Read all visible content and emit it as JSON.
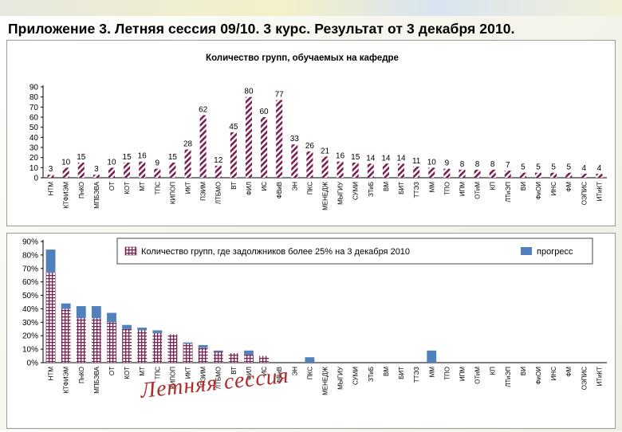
{
  "page": {
    "title": "Приложение 3. Летняя сессия 09/10.   3 курс.  Результат от 3 декабря 2010.",
    "watermark": "Летняя сессия"
  },
  "colors": {
    "hatch_bar": "#7a2050",
    "grid_bar": "#7a2050",
    "progress": "#4f81bd"
  },
  "chart_data": [
    {
      "type": "bar",
      "title": "Количество групп, обучаемых на кафедре",
      "ylim": [
        0,
        90
      ],
      "yticks": [
        0,
        10,
        20,
        30,
        40,
        50,
        60,
        70,
        80,
        90
      ],
      "categories": [
        "НТМ",
        "КТФИЭМ",
        "ПнКО",
        "МПБЭВА",
        "ОТ",
        "КОТ",
        "МТ",
        "ТПС",
        "КИПОП",
        "ИКТ",
        "ПЭИМ",
        "ЛТБМО",
        "ВТ",
        "ФИЛ",
        "ИС",
        "ФВиВ",
        "ЭН",
        "ПКС",
        "МЕНЕДЖ",
        "МЫГИУ",
        "СУМИ",
        "ЗТиБ",
        "ВМ",
        "БИТ",
        "ТТЭЗ",
        "ММ",
        "ТПО",
        "ИПМ",
        "ОТиМ",
        "КП",
        "ЛТиЭП",
        "ВИ",
        "ФиОИ",
        "ИНС",
        "ФМ",
        "ОЭПИС",
        "ИТиКТ"
      ],
      "values": [
        3,
        10,
        15,
        3,
        10,
        15,
        16,
        9,
        15,
        28,
        62,
        12,
        45,
        80,
        60,
        77,
        33,
        26,
        21,
        16,
        15,
        14,
        14,
        14,
        11,
        10,
        9,
        8,
        8,
        8,
        7,
        5,
        5,
        5,
        5,
        4,
        4
      ]
    },
    {
      "type": "bar",
      "stacked": true,
      "ylim": [
        0,
        90
      ],
      "yticks": [
        "0%",
        "10%",
        "20%",
        "30%",
        "40%",
        "50%",
        "60%",
        "70%",
        "80%",
        "90%"
      ],
      "legend_position": "top",
      "categories": [
        "НТМ",
        "КТФИЭМ",
        "ПнКО",
        "МПБЭВА",
        "ОТ",
        "КОТ",
        "МТ",
        "ТПС",
        "КИПОП",
        "ИКТ",
        "ПЭИМ",
        "ЛТБМО",
        "ВТ",
        "ФИЛ",
        "ИС",
        "ФВиВ",
        "ЭН",
        "ПКС",
        "МЕНЕДЖ",
        "МЫГИУ",
        "СУМИ",
        "ЗТиБ",
        "ВМ",
        "БИТ",
        "ТТЭЗ",
        "ММ",
        "ТПО",
        "ИПМ",
        "ОТиМ",
        "КП",
        "ЛТиЭП",
        "ВИ",
        "ФиОИ",
        "ИНС",
        "ФМ",
        "ОЭПИС",
        "ИТиКТ"
      ],
      "series": [
        {
          "name": "Количество групп, где задолжников более  25% на 3 декабря 2010",
          "values": [
            67,
            40,
            33,
            33,
            30,
            25,
            24,
            22,
            21,
            14,
            11,
            8,
            7,
            6,
            5,
            0,
            0,
            0,
            0,
            0,
            0,
            0,
            0,
            0,
            0,
            0,
            0,
            0,
            0,
            0,
            0,
            0,
            0,
            0,
            0,
            0,
            0
          ]
        },
        {
          "name": "прогресс",
          "values": [
            17,
            4,
            9,
            9,
            7,
            3,
            2,
            2,
            0,
            1,
            2,
            1,
            0,
            3,
            0,
            0,
            0,
            4,
            0,
            0,
            0,
            0,
            0,
            0,
            0,
            9,
            0,
            0,
            0,
            0,
            0,
            0,
            0,
            0,
            0,
            0,
            0
          ]
        }
      ]
    }
  ]
}
